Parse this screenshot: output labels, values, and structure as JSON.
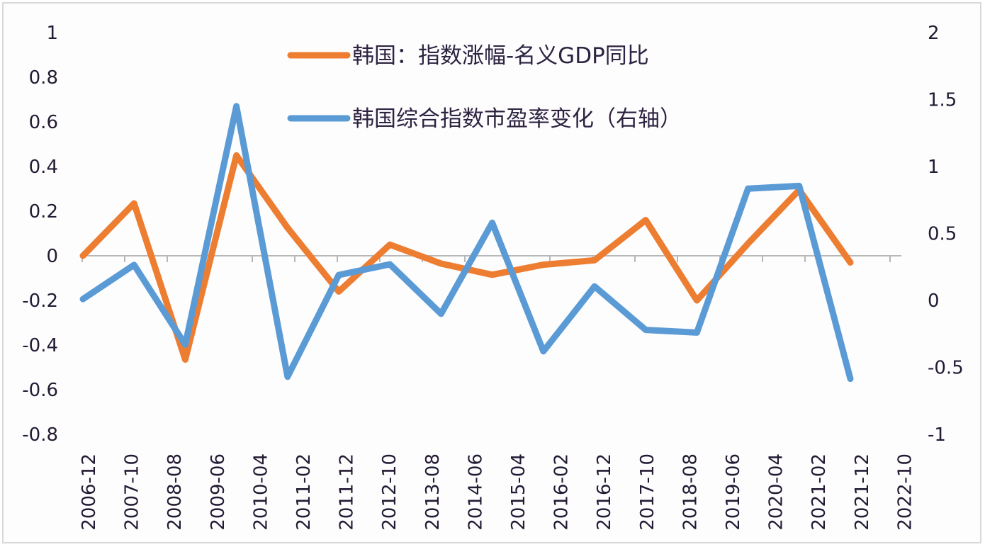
{
  "chart_data": {
    "type": "line",
    "title": "",
    "xlabel": "",
    "ylabel": "",
    "y2label": "",
    "x_tick_labels": [
      "2006-12",
      "2007-10",
      "2008-08",
      "2009-06",
      "2010-04",
      "2011-02",
      "2011-12",
      "2012-10",
      "2013-08",
      "2014-06",
      "2015-04",
      "2016-02",
      "2016-12",
      "2017-10",
      "2018-08",
      "2019-06",
      "2020-04",
      "2021-02",
      "2021-12",
      "2022-10"
    ],
    "x": [
      "2006",
      "2007",
      "2008",
      "2009",
      "2010",
      "2011",
      "2012",
      "2013",
      "2014",
      "2015",
      "2016",
      "2017",
      "2018",
      "2019",
      "2020",
      "2021"
    ],
    "ylim": [
      -0.8,
      1
    ],
    "y_ticks": [
      "1",
      "0.8",
      "0.6",
      "0.4",
      "0.2",
      "0",
      "-0.2",
      "-0.4",
      "-0.6",
      "-0.8"
    ],
    "y2lim": [
      -1,
      2
    ],
    "y2_ticks": [
      "2",
      "1.5",
      "1",
      "0.5",
      "0",
      "-0.5",
      "-1"
    ],
    "grid": false,
    "legend_position": "top-center",
    "series": [
      {
        "name": "韩国：指数涨幅-名义GDP同比",
        "axis": "left",
        "color": "#ed7d31",
        "values": [
          0.0,
          0.235,
          -0.465,
          0.45,
          0.125,
          -0.16,
          0.05,
          -0.035,
          -0.085,
          -0.04,
          -0.02,
          0.16,
          -0.2,
          0.055,
          0.295,
          -0.03
        ]
      },
      {
        "name": "韩国综合指数市盈率变化（右轴）",
        "axis": "right",
        "color": "#5b9bd5",
        "values": [
          0.01,
          0.265,
          -0.33,
          1.45,
          -0.57,
          0.19,
          0.27,
          -0.1,
          0.58,
          -0.38,
          0.105,
          -0.22,
          -0.24,
          0.835,
          0.855,
          -0.585
        ]
      }
    ]
  },
  "legend": {
    "item1": "韩国：指数涨幅-名义GDP同比",
    "item2": "韩国综合指数市盈率变化（右轴）"
  }
}
